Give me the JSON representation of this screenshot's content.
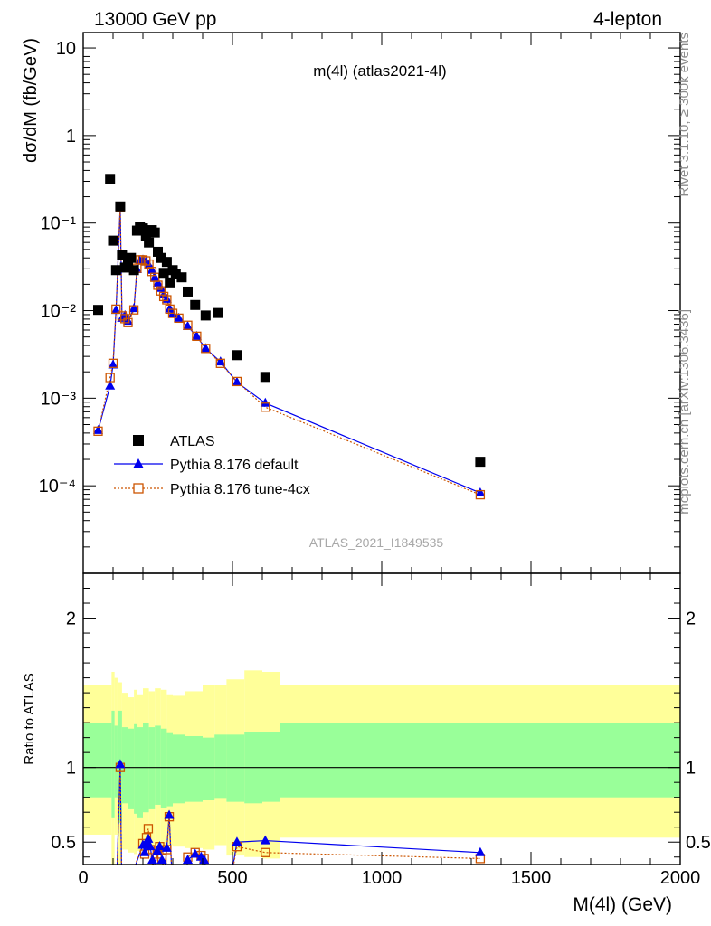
{
  "header": {
    "left": "13000 GeV pp",
    "right": "4-lepton"
  },
  "side_labels": {
    "rivet": "Rivet 3.1.10, ≥ 300k events",
    "mcplots": "mcplots.cern.ch [arXiv:1306.3436]"
  },
  "chart_data": [
    {
      "type": "scatter",
      "title": "m(4l) (atlas2021-4l)",
      "analysis_label": "ATLAS_2021_I1849535",
      "ylabel": "dσ/dM (fb/GeV)",
      "yscale": "log",
      "xlim": [
        0,
        2000
      ],
      "ylim": [
        1e-05,
        15
      ],
      "yticks": [
        {
          "value": 10,
          "label": "10"
        },
        {
          "value": 1,
          "label": "1"
        },
        {
          "value": 0.1,
          "label": "10⁻¹"
        },
        {
          "value": 0.01,
          "label": "10⁻²"
        },
        {
          "value": 0.001,
          "label": "10⁻³"
        },
        {
          "value": 0.0001,
          "label": "10⁻⁴"
        }
      ],
      "legend_position": "bottom-left",
      "series": [
        {
          "name": "ATLAS",
          "color": "#000000",
          "marker": "square-filled",
          "points": [
            [
              50,
              0.0102
            ],
            [
              90,
              0.32
            ],
            [
              100,
              0.063
            ],
            [
              110,
              0.029
            ],
            [
              124,
              0.155
            ],
            [
              130,
              0.043
            ],
            [
              140,
              0.031
            ],
            [
              150,
              0.036
            ],
            [
              160,
              0.04
            ],
            [
              170,
              0.029
            ],
            [
              180,
              0.082
            ],
            [
              190,
              0.09
            ],
            [
              200,
              0.087
            ],
            [
              210,
              0.072
            ],
            [
              220,
              0.06
            ],
            [
              230,
              0.083
            ],
            [
              240,
              0.078
            ],
            [
              250,
              0.047
            ],
            [
              260,
              0.04
            ],
            [
              270,
              0.027
            ],
            [
              280,
              0.036
            ],
            [
              290,
              0.021
            ],
            [
              300,
              0.029
            ],
            [
              310,
              0.026
            ],
            [
              330,
              0.024
            ],
            [
              350,
              0.0165
            ],
            [
              375,
              0.0116
            ],
            [
              410,
              0.0088
            ],
            [
              450,
              0.0094
            ],
            [
              515,
              0.0031
            ],
            [
              610,
              0.00175
            ],
            [
              1330,
              0.000188
            ]
          ]
        },
        {
          "name": "Pythia 8.176 default",
          "color": "#0000ee",
          "marker": "triangle",
          "line": "solid",
          "points": [
            [
              50,
              0.00043
            ],
            [
              90,
              0.00138
            ],
            [
              100,
              0.0024
            ],
            [
              110,
              0.0101
            ],
            [
              124,
              0.152
            ],
            [
              130,
              0.0082
            ],
            [
              140,
              0.0088
            ],
            [
              150,
              0.0076
            ],
            [
              170,
              0.0106
            ],
            [
              180,
              0.0295
            ],
            [
              190,
              0.037
            ],
            [
              200,
              0.038
            ],
            [
              210,
              0.036
            ],
            [
              220,
              0.033
            ],
            [
              230,
              0.029
            ],
            [
              240,
              0.024
            ],
            [
              250,
              0.0207
            ],
            [
              260,
              0.018
            ],
            [
              270,
              0.0152
            ],
            [
              280,
              0.0135
            ],
            [
              290,
              0.0105
            ],
            [
              300,
              0.0092
            ],
            [
              320,
              0.0082
            ],
            [
              350,
              0.0066
            ],
            [
              380,
              0.0051
            ],
            [
              410,
              0.0037
            ],
            [
              460,
              0.0026
            ],
            [
              515,
              0.00152
            ],
            [
              610,
              0.00088
            ],
            [
              1330,
              8.3e-05
            ]
          ]
        },
        {
          "name": "Pythia 8.176 tune-4cx",
          "color": "#cc5500",
          "marker": "square-open",
          "line": "dotted",
          "points": [
            [
              50,
              0.00042
            ],
            [
              90,
              0.00172
            ],
            [
              100,
              0.0025
            ],
            [
              110,
              0.0104
            ],
            [
              124,
              0.153
            ],
            [
              130,
              0.0087
            ],
            [
              140,
              0.0081
            ],
            [
              150,
              0.0073
            ],
            [
              170,
              0.0102
            ],
            [
              180,
              0.0305
            ],
            [
              190,
              0.038
            ],
            [
              200,
              0.038
            ],
            [
              210,
              0.037
            ],
            [
              220,
              0.034
            ],
            [
              230,
              0.028
            ],
            [
              240,
              0.024
            ],
            [
              250,
              0.0195
            ],
            [
              260,
              0.0168
            ],
            [
              270,
              0.0145
            ],
            [
              280,
              0.0133
            ],
            [
              290,
              0.0104
            ],
            [
              300,
              0.0093
            ],
            [
              320,
              0.0082
            ],
            [
              350,
              0.0068
            ],
            [
              380,
              0.0051
            ],
            [
              410,
              0.0037
            ],
            [
              460,
              0.0025
            ],
            [
              515,
              0.00155
            ],
            [
              610,
              0.00079
            ],
            [
              1330,
              7.9e-05
            ]
          ]
        }
      ]
    },
    {
      "type": "line",
      "ylabel": "Ratio to ATLAS",
      "xlabel": "M(4l) (GeV)",
      "xlim": [
        0,
        2000
      ],
      "ylim": [
        0.35,
        2.3
      ],
      "xticks": [
        0,
        500,
        1000,
        1500,
        2000
      ],
      "yticks": [
        0.5,
        1,
        2
      ],
      "reference_line": 1,
      "band_edges": [
        0,
        95,
        105,
        115,
        130,
        150,
        170,
        180,
        200,
        220,
        240,
        260,
        280,
        300,
        340,
        400,
        440,
        480,
        540,
        600,
        660,
        2000
      ],
      "band_inner": {
        "color": "#99ff99",
        "low": [
          0.8,
          0.66,
          0.8,
          0.63,
          0.76,
          0.72,
          0.69,
          0.66,
          0.7,
          0.72,
          0.75,
          0.73,
          0.74,
          0.76,
          0.77,
          0.78,
          0.79,
          0.77,
          0.76,
          0.77,
          0.8
        ],
        "high": [
          1.3,
          1.38,
          1.28,
          1.38,
          1.27,
          1.26,
          1.29,
          1.27,
          1.3,
          1.27,
          1.28,
          1.26,
          1.23,
          1.22,
          1.21,
          1.2,
          1.22,
          1.22,
          1.24,
          1.24,
          1.3
        ]
      },
      "band_outer": {
        "color": "#ffff99",
        "low": [
          0.55,
          0.2,
          0.55,
          0.3,
          0.45,
          0.43,
          0.42,
          0.44,
          0.46,
          0.47,
          0.45,
          0.47,
          0.48,
          0.47,
          0.46,
          0.45,
          0.48,
          0.41,
          0.4,
          0.39,
          0.53
        ],
        "high": [
          1.55,
          1.64,
          1.6,
          1.57,
          1.5,
          1.47,
          1.52,
          1.49,
          1.53,
          1.51,
          1.53,
          1.52,
          1.49,
          1.48,
          1.51,
          1.55,
          1.55,
          1.59,
          1.65,
          1.64,
          1.55
        ]
      },
      "series": [
        {
          "name": "Pythia 8.176 default",
          "color": "#0000ee",
          "marker": "triangle",
          "line": "solid",
          "points": [
            [
              110,
              0.1
            ],
            [
              124,
              1.02
            ],
            [
              130,
              0.1
            ],
            [
              200,
              0.48
            ],
            [
              206,
              0.43
            ],
            [
              212,
              0.5
            ],
            [
              218,
              0.52
            ],
            [
              224,
              0.47
            ],
            [
              232,
              0.38
            ],
            [
              240,
              0.32
            ],
            [
              248,
              0.44
            ],
            [
              256,
              0.47
            ],
            [
              264,
              0.38
            ],
            [
              272,
              0.3
            ],
            [
              280,
              0.46
            ],
            [
              288,
              0.68
            ],
            [
              296,
              0.33
            ],
            [
              305,
              0.3
            ],
            [
              340,
              0.2
            ],
            [
              350,
              0.38
            ],
            [
              375,
              0.42
            ],
            [
              395,
              0.4
            ],
            [
              405,
              0.38
            ],
            [
              430,
              0.2
            ],
            [
              490,
              0.2
            ],
            [
              515,
              0.5
            ],
            [
              610,
              0.51
            ],
            [
              1330,
              0.43
            ]
          ]
        },
        {
          "name": "Pythia 8.176 tune-4cx",
          "color": "#cc5500",
          "marker": "square-open",
          "line": "dotted",
          "points": [
            [
              110,
              0.1
            ],
            [
              124,
              1.0
            ],
            [
              130,
              0.1
            ],
            [
              200,
              0.49
            ],
            [
              206,
              0.42
            ],
            [
              212,
              0.53
            ],
            [
              218,
              0.59
            ],
            [
              224,
              0.45
            ],
            [
              232,
              0.35
            ],
            [
              240,
              0.32
            ],
            [
              248,
              0.42
            ],
            [
              256,
              0.47
            ],
            [
              264,
              0.39
            ],
            [
              272,
              0.32
            ],
            [
              280,
              0.45
            ],
            [
              288,
              0.67
            ],
            [
              296,
              0.33
            ],
            [
              305,
              0.3
            ],
            [
              340,
              0.2
            ],
            [
              350,
              0.4
            ],
            [
              375,
              0.43
            ],
            [
              395,
              0.41
            ],
            [
              405,
              0.39
            ],
            [
              430,
              0.2
            ],
            [
              490,
              0.2
            ],
            [
              515,
              0.47
            ],
            [
              610,
              0.43
            ],
            [
              1330,
              0.39
            ]
          ]
        }
      ]
    }
  ]
}
